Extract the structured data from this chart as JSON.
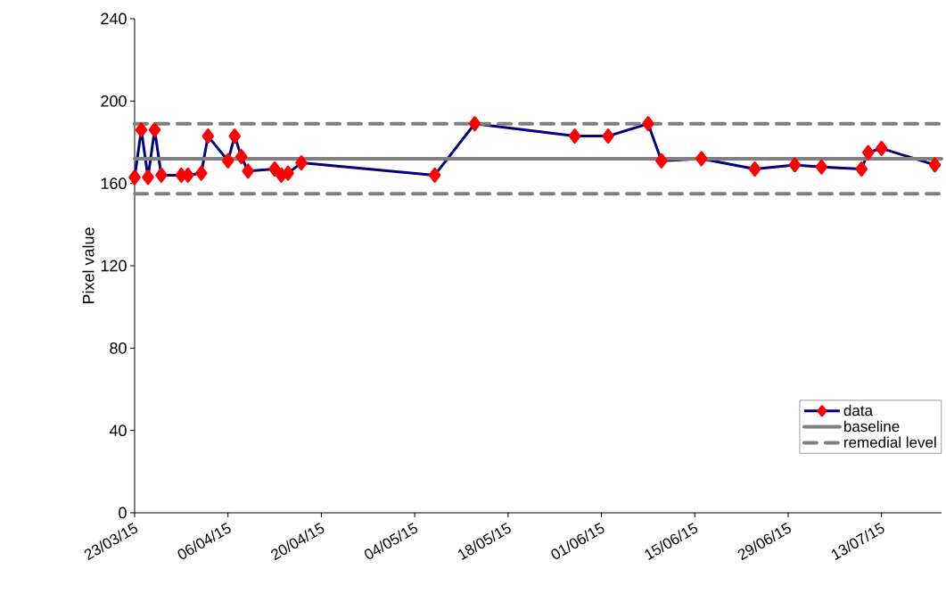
{
  "chart_data": {
    "type": "line",
    "ylabel": "Pixel value",
    "x": [
      "2015-03-23",
      "2015-03-24",
      "2015-03-25",
      "2015-03-26",
      "2015-03-27",
      "2015-03-30",
      "2015-03-31",
      "2015-04-02",
      "2015-04-03",
      "2015-04-06",
      "2015-04-07",
      "2015-04-08",
      "2015-04-09",
      "2015-04-13",
      "2015-04-14",
      "2015-04-15",
      "2015-04-17",
      "2015-05-07",
      "2015-05-13",
      "2015-05-28",
      "2015-06-02",
      "2015-06-08",
      "2015-06-10",
      "2015-06-16",
      "2015-06-24",
      "2015-06-30",
      "2015-07-04",
      "2015-07-10",
      "2015-07-11",
      "2015-07-13",
      "2015-07-21"
    ],
    "series": [
      {
        "name": "data",
        "color": "#000080",
        "colors": [
          "#ff0000",
          "#ff0000",
          "#ff0000",
          "#ff0000",
          "#ff0000",
          "#ff0000",
          "#ff0000",
          "#ff0000",
          "#ff0000",
          "#ff0000",
          "#ff0000",
          "#ff0000",
          "#ff0000",
          "#ff0000",
          "#ff0000",
          "#ff0000",
          "#ff0000",
          "#ff0000",
          "#ff0000",
          "#ff0000",
          "#ff0000",
          "#ff0000",
          "#ff0000",
          "#ff0000",
          "#ff0000",
          "#ff0000",
          "#ff0000",
          "#ff0000",
          "#ff0000",
          "#ff0000",
          "#ff0000"
        ],
        "values": [
          163,
          186,
          163,
          186,
          164,
          164,
          164,
          165,
          183,
          171,
          183,
          173,
          166,
          167,
          164,
          165,
          170,
          164,
          189,
          183,
          183,
          189,
          171,
          172,
          167,
          169,
          168,
          167,
          175,
          177,
          169
        ]
      }
    ],
    "marker": "diamond",
    "line_style": "solid",
    "ref_lines": [
      {
        "axis": "y",
        "value": 172,
        "label": "baseline",
        "color": "#808080",
        "line_style": "solid"
      },
      {
        "axis": "y",
        "value": 189,
        "label": "remedial level",
        "color": "#808080",
        "line_style": "dashed"
      },
      {
        "axis": "y",
        "value": 155,
        "color": "#808080",
        "line_style": "dashed"
      }
    ],
    "xlim": [
      "2015-03-23",
      "2015-07-22"
    ],
    "xticks": [
      {
        "value": "2015-03-23",
        "label": "23/03/15"
      },
      {
        "value": "2015-04-06",
        "label": "06/04/15"
      },
      {
        "value": "2015-04-20",
        "label": "20/04/15"
      },
      {
        "value": "2015-05-04",
        "label": "04/05/15"
      },
      {
        "value": "2015-05-18",
        "label": "18/05/15"
      },
      {
        "value": "2015-06-01",
        "label": "01/06/15"
      },
      {
        "value": "2015-06-15",
        "label": "15/06/15"
      },
      {
        "value": "2015-06-29",
        "label": "29/06/15"
      },
      {
        "value": "2015-07-13",
        "label": "13/07/15"
      }
    ],
    "ylim": [
      0,
      240
    ],
    "yticks": [
      0,
      40,
      80,
      120,
      160,
      200,
      240
    ],
    "grid": false,
    "legend": "bottom right"
  }
}
